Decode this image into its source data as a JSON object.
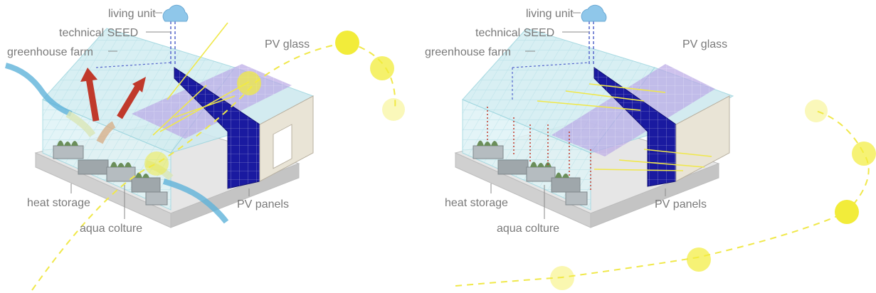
{
  "left_diagram": {
    "labels": {
      "living_unit": "living unit",
      "technical_seed": "technical SEED",
      "greenhouse_farm": "greenhouse farm",
      "pv_glass": "PV glass",
      "heat_storage": "heat storage",
      "aqua_colture": "aqua colture",
      "pv_panels": "PV panels"
    }
  },
  "right_diagram": {
    "labels": {
      "living_unit": "living unit",
      "technical_seed": "technical SEED",
      "greenhouse_farm": "greenhouse farm",
      "pv_glass": "PV glass",
      "heat_storage": "heat storage",
      "aqua_colture": "aqua colture",
      "pv_panels": "PV panels"
    }
  },
  "colors": {
    "sun": "#f2ec3a",
    "sun_path": "#f0e84a",
    "pv_panel": "#1a1aa0",
    "pv_glass": "#b9a8e6",
    "glass": "#cfeef3",
    "heat_arrow": "#c0392b",
    "cool_arrow": "#5fb3d9",
    "cloud": "#8fc7ea",
    "label": "#7a7a7a"
  },
  "icons": [
    "sun-icon",
    "cloud-icon",
    "wind-icon",
    "heat-arrow-icon"
  ]
}
